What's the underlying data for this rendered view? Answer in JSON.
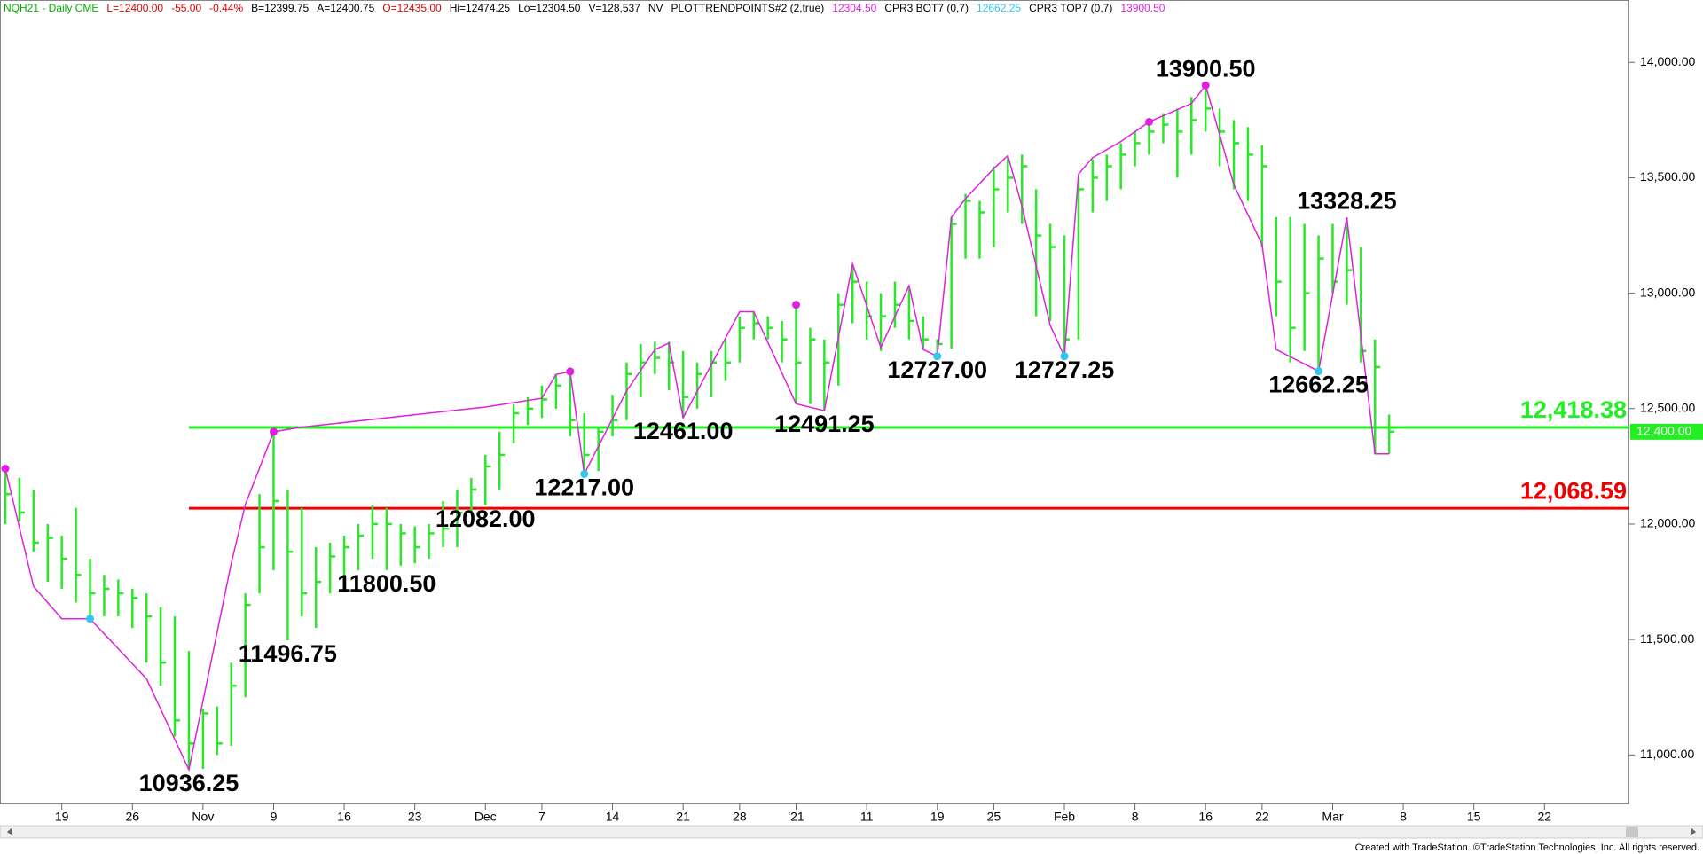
{
  "header": {
    "items": [
      {
        "text": "NQH21 - Daily  CME",
        "color": "#00b000"
      },
      {
        "text": "L=12400.00",
        "color": "#e00000"
      },
      {
        "text": "-55.00",
        "color": "#e00000"
      },
      {
        "text": "-0.44%",
        "color": "#e00000"
      },
      {
        "text": "B=12399.75",
        "color": "#000000"
      },
      {
        "text": "A=12400.75",
        "color": "#000000"
      },
      {
        "text": "O=12435.00",
        "color": "#e00000"
      },
      {
        "text": "Hi=12474.25",
        "color": "#000000"
      },
      {
        "text": "Lo=12304.50",
        "color": "#000000"
      },
      {
        "text": "V=128,537",
        "color": "#000000"
      },
      {
        "text": "NV",
        "color": "#000000"
      },
      {
        "text": "PLOTTRENDPOINTS#2 (2,true)",
        "color": "#000000"
      },
      {
        "text": "12304.50",
        "color": "#e020e0"
      },
      {
        "text": "CPR3 BOT7 (0,7)",
        "color": "#000000"
      },
      {
        "text": "12662.25",
        "color": "#30c8f0"
      },
      {
        "text": "CPR3 TOP7 (0,7)",
        "color": "#000000"
      },
      {
        "text": "13900.50",
        "color": "#e020e0"
      }
    ]
  },
  "footer": "Created with TradeStation. ©TradeStation Technologies, Inc. All rights reserved.",
  "chart_data": {
    "type": "ohlc",
    "color": "#28e828",
    "categories": [
      null,
      null,
      null,
      null,
      "19",
      null,
      null,
      null,
      null,
      "26",
      null,
      null,
      null,
      null,
      "Nov",
      null,
      null,
      null,
      null,
      "9",
      null,
      null,
      null,
      null,
      "16",
      null,
      null,
      null,
      null,
      "23",
      null,
      null,
      null,
      null,
      "Dec",
      null,
      null,
      null,
      "7",
      null,
      null,
      null,
      null,
      "14",
      null,
      null,
      null,
      null,
      "21",
      null,
      null,
      null,
      "28",
      null,
      null,
      null,
      "'21",
      null,
      null,
      null,
      null,
      "11",
      null,
      null,
      null,
      null,
      "19",
      null,
      null,
      null,
      "25",
      null,
      null,
      null,
      null,
      "Feb",
      null,
      null,
      null,
      null,
      "8",
      null,
      null,
      null,
      null,
      "16",
      null,
      null,
      null,
      "22",
      null,
      null,
      null,
      null,
      "Mar",
      null,
      null,
      null,
      null,
      "8",
      null,
      null,
      null,
      null,
      "15",
      null,
      null,
      null,
      null,
      "22",
      null,
      null,
      null,
      null,
      null
    ],
    "high": [
      12240,
      12200,
      12150,
      12000,
      11950,
      12070,
      11850,
      11780,
      11760,
      11720,
      11700,
      11640,
      11600,
      11450,
      11200,
      11210,
      11400,
      11700,
      12130,
      12400,
      12150,
      12070,
      11900,
      11920,
      11950,
      12000,
      12080,
      12070,
      12000,
      11990,
      12000,
      12100,
      12150,
      12200,
      12300,
      12400,
      12520,
      12550,
      12600,
      12650,
      12661,
      12480,
      12420,
      12560,
      12700,
      12780,
      12790,
      12790,
      12750,
      12700,
      12750,
      12800,
      12900,
      12920,
      12900,
      12880,
      12950,
      12850,
      12800,
      13000,
      13120,
      13050,
      13000,
      13050,
      13020,
      12900,
      12800,
      13330,
      13430,
      13400,
      13550,
      13590,
      13600,
      13450,
      13300,
      13250,
      13500,
      13580,
      13600,
      13650,
      13700,
      13740,
      13780,
      13800,
      13850,
      13900.5,
      13800,
      13750,
      13720,
      13640,
      13330,
      13330,
      13300,
      13250,
      13300,
      13328.25,
      13200,
      12800,
      12474.25,
      null,
      null,
      null,
      null,
      null,
      null,
      null,
      null,
      null,
      null,
      null,
      null,
      null,
      null,
      null,
      null
    ],
    "low": [
      12000,
      12010,
      11880,
      11750,
      11720,
      11660,
      11590,
      11600,
      11600,
      11550,
      11400,
      11300,
      11080,
      10936.25,
      10940,
      11000,
      11040,
      11250,
      11700,
      11800,
      11496.75,
      11600,
      11550,
      11700,
      11750,
      11800,
      11850,
      11800.5,
      11820,
      11830,
      11850,
      11900,
      11900,
      12050,
      12082,
      12150,
      12350,
      12430,
      12460,
      12500,
      12380,
      12217,
      12230,
      12380,
      12450,
      12550,
      12650,
      12580,
      12461,
      12500,
      12550,
      12620,
      12700,
      12800,
      12800,
      12700,
      12520,
      12520,
      12491.25,
      12600,
      12870,
      12800,
      12750,
      12850,
      12800,
      12760,
      12727,
      12760,
      13150,
      13150,
      13200,
      13350,
      13300,
      12900,
      12880,
      12727.25,
      12800,
      13350,
      13400,
      13450,
      13550,
      13600,
      13650,
      13500,
      13600,
      13700,
      13550,
      13450,
      13400,
      13200,
      12900,
      12700,
      12750,
      12662.25,
      13000,
      12950,
      12700,
      12304.5,
      12304.5,
      null,
      null,
      null,
      null,
      null,
      null,
      null,
      null,
      null,
      null,
      null,
      null,
      null,
      null,
      null,
      null
    ],
    "close": [
      12130,
      12050,
      11920,
      11940,
      11850,
      11780,
      11700,
      11720,
      11700,
      11680,
      11600,
      11400,
      11150,
      11050,
      11180,
      11050,
      11300,
      11650,
      11900,
      12100,
      11880,
      11700,
      11750,
      11860,
      11900,
      11950,
      12000,
      12000,
      11960,
      11900,
      11960,
      11980,
      12050,
      12150,
      12250,
      12300,
      12480,
      12500,
      12540,
      12600,
      12450,
      12300,
      12400,
      12450,
      12650,
      12700,
      12720,
      12700,
      12550,
      12650,
      12700,
      12700,
      12850,
      12870,
      12850,
      12800,
      12700,
      12800,
      12700,
      12950,
      13050,
      12900,
      12900,
      12950,
      12880,
      12800,
      12780,
      13300,
      13400,
      13350,
      13450,
      13500,
      13550,
      13250,
      13200,
      12800,
      13450,
      13500,
      13550,
      13600,
      13650,
      13700,
      13730,
      13700,
      13750,
      13800,
      13700,
      13650,
      13600,
      13550,
      13050,
      12850,
      13000,
      13150,
      13050,
      13100,
      12750,
      12680,
      12400,
      null,
      null,
      null,
      null,
      null,
      null,
      null,
      null,
      null,
      null,
      null,
      null,
      null,
      null,
      null,
      null
    ],
    "trend": {
      "color": "#e020e0",
      "x": [
        0,
        2,
        4,
        6,
        10,
        13,
        16,
        17,
        19,
        21,
        34,
        38,
        39,
        40,
        41,
        44,
        46,
        47,
        48,
        52,
        53,
        56,
        58,
        60,
        62,
        64,
        65,
        66,
        67,
        68,
        70,
        71,
        72,
        74,
        75,
        76,
        77,
        79,
        81,
        84,
        85,
        87,
        89,
        90,
        93,
        95,
        97,
        98
      ],
      "values": [
        12240,
        11730,
        11590,
        11590,
        11330,
        10936.25,
        11830,
        12085,
        12400,
        12420,
        12507,
        12545,
        12648,
        12661,
        12217,
        12577,
        12756,
        12784,
        12461,
        12920,
        12920,
        12521,
        12491.25,
        13127,
        12765,
        13033,
        12756,
        12727,
        13329,
        13410,
        13540,
        13596,
        13376,
        12860,
        12727.25,
        13516,
        13587,
        13657,
        13742,
        13822,
        13900.5,
        13470,
        13210,
        12756,
        12662.25,
        13328.25,
        12304.5,
        12304.5
      ]
    },
    "pivots": [
      {
        "x": 0,
        "value": 12240,
        "color": "#e020e0"
      },
      {
        "x": 19,
        "value": 12400,
        "color": "#e020e0"
      },
      {
        "x": 40,
        "value": 12661,
        "color": "#e020e0"
      },
      {
        "x": 56,
        "value": 12950,
        "color": "#e020e0"
      },
      {
        "x": 81,
        "value": 13742,
        "color": "#e020e0"
      },
      {
        "x": 85,
        "value": 13900.5,
        "color": "#e020e0"
      },
      {
        "x": 6,
        "value": 11590,
        "color": "#30c8f0"
      },
      {
        "x": 41,
        "value": 12217,
        "color": "#30c8f0"
      },
      {
        "x": 66,
        "value": 12727,
        "color": "#30c8f0"
      },
      {
        "x": 75,
        "value": 12727.25,
        "color": "#30c8f0"
      },
      {
        "x": 93,
        "value": 12662.25,
        "color": "#30c8f0"
      }
    ],
    "annotations": [
      {
        "x": 13,
        "value": 10936.25,
        "label": "10936.25"
      },
      {
        "x": 20,
        "value": 11496.75,
        "label": "11496.75"
      },
      {
        "x": 27,
        "value": 11800.5,
        "label": "11800.50"
      },
      {
        "x": 34,
        "value": 12082,
        "label": "12082.00"
      },
      {
        "x": 41,
        "value": 12217,
        "label": "12217.00"
      },
      {
        "x": 48,
        "value": 12461,
        "label": "12461.00"
      },
      {
        "x": 58,
        "value": 12491.25,
        "label": "12491.25"
      },
      {
        "x": 66,
        "value": 12727,
        "label": "12727.00"
      },
      {
        "x": 75,
        "value": 12727.25,
        "label": "12727.25"
      },
      {
        "x": 85,
        "value": 13900.5,
        "label": "13900.50"
      },
      {
        "x": 95,
        "value": 13328.25,
        "label": "13328.25"
      },
      {
        "x": 93,
        "value": 12662.25,
        "label": "12662.25"
      }
    ],
    "levels": [
      {
        "from": 13,
        "value": 12418.38,
        "label": "12,418.38",
        "color": "#22ee22"
      },
      {
        "from": 13,
        "value": 12068.59,
        "label": "12,068.59",
        "color": "#ee0000"
      }
    ],
    "last": {
      "value": 12400,
      "label": "12,400.00",
      "color": "#22ee22"
    },
    "ylim": [
      10790,
      14270
    ],
    "yticks": [
      {
        "value": 11000,
        "label": "11,000.00"
      },
      {
        "value": 11500,
        "label": "11,500.00"
      },
      {
        "value": 12000,
        "label": "12,000.00"
      },
      {
        "value": 12500,
        "label": "12,500.00"
      },
      {
        "value": 13000,
        "label": "13,000.00"
      },
      {
        "value": 13500,
        "label": "13,500.00"
      },
      {
        "value": 14000,
        "label": "14,000.00"
      }
    ]
  }
}
